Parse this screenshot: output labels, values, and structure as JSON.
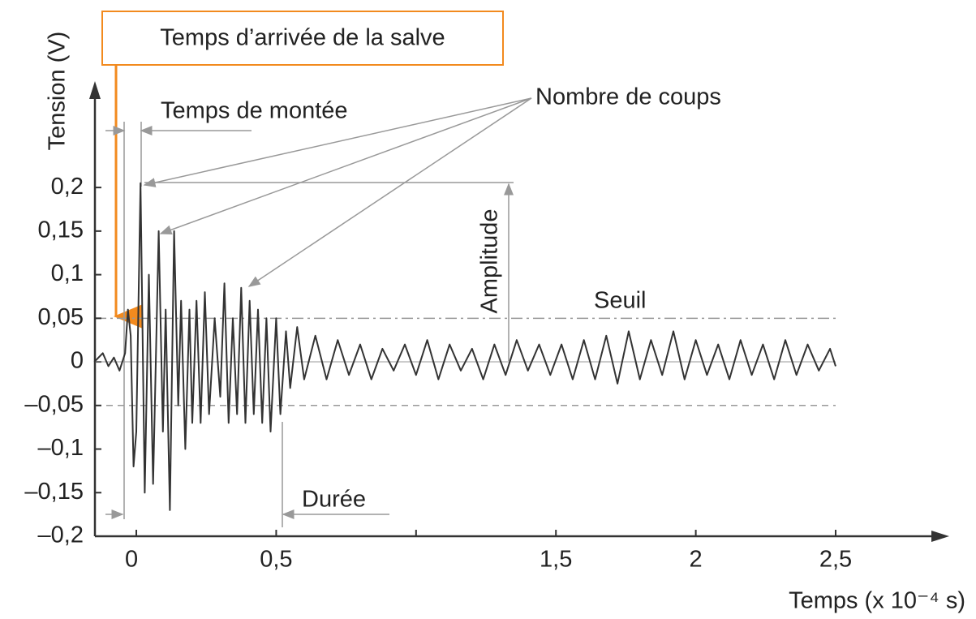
{
  "chart_data": {
    "type": "line",
    "xlabel": "Temps (x 10⁻⁴ s)",
    "ylabel": "Tension (V)",
    "annotations": {
      "arrival": "Temps d’arrivée de la salve",
      "rise": "Temps de montée",
      "counts": "Nombre de coups",
      "amplitude": "Amplitude",
      "threshold": "Seuil",
      "duration": "Durée"
    },
    "thresholds": [
      0.05,
      -0.05
    ],
    "xlim": [
      -0.148,
      2.906
    ],
    "ylim": [
      -0.2,
      0.322
    ],
    "xticks": [
      {
        "value": 0,
        "label": "0"
      },
      {
        "value": 0.5,
        "label": "0,5"
      },
      {
        "value": 1,
        "label": null
      },
      {
        "value": 1.5,
        "label": "1,5"
      },
      {
        "value": 2,
        "label": "2"
      },
      {
        "value": 2.5,
        "label": "2,5"
      }
    ],
    "yticks": [
      {
        "value": -0.2,
        "label": "–0,2"
      },
      {
        "value": -0.15,
        "label": "–0,15"
      },
      {
        "value": -0.1,
        "label": "–0,1"
      },
      {
        "value": -0.05,
        "label": "–0,05"
      },
      {
        "value": 0,
        "label": "0"
      },
      {
        "value": 0.05,
        "label": "0,05"
      },
      {
        "value": 0.1,
        "label": "0,1"
      },
      {
        "value": 0.15,
        "label": "0,15"
      },
      {
        "value": 0.2,
        "label": "0,2"
      }
    ],
    "series": [
      {
        "color": "#333333",
        "x": [
          -0.15,
          -0.12,
          -0.1,
          -0.08,
          -0.06,
          -0.04,
          -0.03,
          -0.02,
          -0.01,
          0.0,
          0.015,
          0.03,
          0.045,
          0.06,
          0.08,
          0.095,
          0.105,
          0.12,
          0.135,
          0.15,
          0.16,
          0.175,
          0.19,
          0.2,
          0.215,
          0.23,
          0.245,
          0.26,
          0.28,
          0.3,
          0.315,
          0.33,
          0.345,
          0.36,
          0.375,
          0.39,
          0.405,
          0.42,
          0.435,
          0.45,
          0.465,
          0.48,
          0.5,
          0.515,
          0.535,
          0.55,
          0.575,
          0.6,
          0.64,
          0.68,
          0.72,
          0.76,
          0.8,
          0.84,
          0.88,
          0.92,
          0.96,
          1.0,
          1.04,
          1.08,
          1.12,
          1.16,
          1.2,
          1.24,
          1.28,
          1.32,
          1.36,
          1.4,
          1.44,
          1.48,
          1.52,
          1.56,
          1.6,
          1.64,
          1.68,
          1.72,
          1.76,
          1.8,
          1.84,
          1.88,
          1.92,
          1.96,
          2.0,
          2.04,
          2.08,
          2.12,
          2.16,
          2.2,
          2.24,
          2.28,
          2.32,
          2.36,
          2.4,
          2.44,
          2.48,
          2.5
        ],
        "values": [
          0,
          0.01,
          -0.005,
          0.005,
          -0.01,
          0.01,
          0.06,
          0.03,
          -0.12,
          -0.08,
          0.205,
          -0.15,
          0.1,
          -0.14,
          0.15,
          -0.08,
          0.06,
          -0.17,
          0.15,
          -0.05,
          0.07,
          -0.1,
          0.06,
          -0.07,
          0.07,
          -0.07,
          0.08,
          -0.06,
          0.05,
          -0.04,
          0.09,
          -0.07,
          0.05,
          -0.06,
          0.085,
          -0.07,
          0.07,
          -0.06,
          0.06,
          -0.07,
          0.05,
          -0.08,
          0.05,
          -0.06,
          0.035,
          -0.03,
          0.04,
          -0.02,
          0.03,
          -0.02,
          0.025,
          -0.015,
          0.02,
          -0.02,
          0.015,
          -0.01,
          0.02,
          -0.015,
          0.025,
          -0.02,
          0.02,
          -0.01,
          0.015,
          -0.02,
          0.02,
          -0.015,
          0.025,
          -0.01,
          0.02,
          -0.015,
          0.02,
          -0.02,
          0.025,
          -0.02,
          0.03,
          -0.025,
          0.035,
          -0.02,
          0.025,
          -0.015,
          0.035,
          -0.02,
          0.025,
          -0.015,
          0.02,
          -0.02,
          0.025,
          -0.015,
          0.02,
          -0.02,
          0.025,
          -0.015,
          0.02,
          -0.01,
          0.015,
          -0.005
        ]
      }
    ]
  }
}
